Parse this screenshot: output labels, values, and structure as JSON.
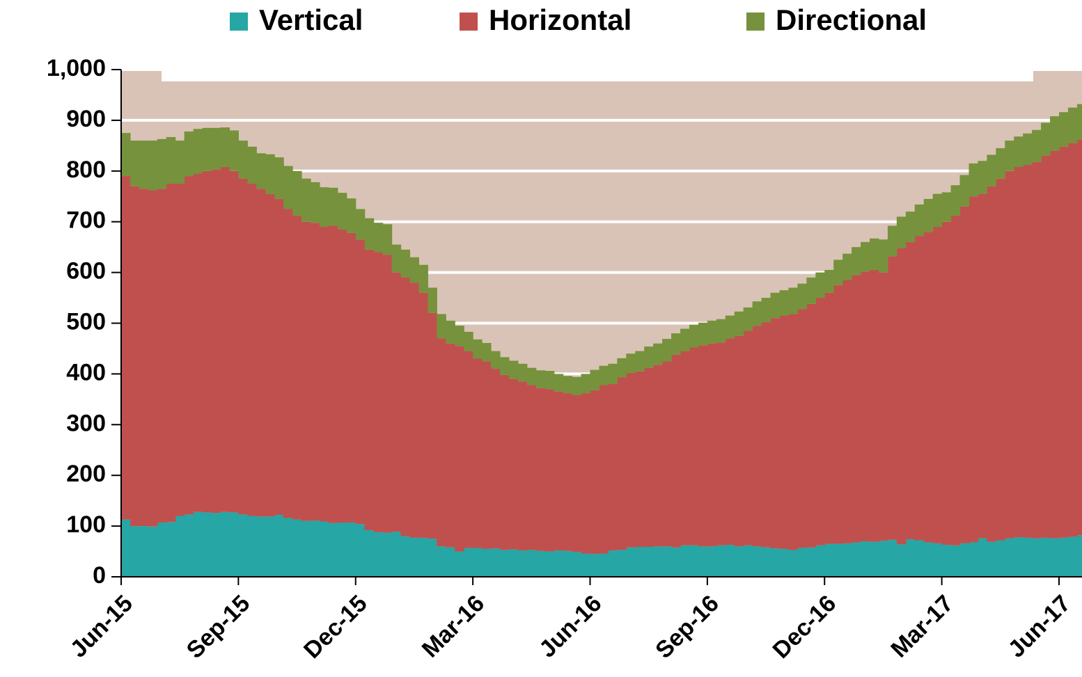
{
  "chart_data": {
    "type": "stacked-area",
    "categories": [
      "Jun-15",
      null,
      null,
      null,
      null,
      null,
      null,
      null,
      null,
      null,
      null,
      null,
      null,
      "Sep-15",
      null,
      null,
      null,
      null,
      null,
      null,
      null,
      null,
      null,
      null,
      null,
      null,
      "Dec-15",
      null,
      null,
      null,
      null,
      null,
      null,
      null,
      null,
      null,
      null,
      null,
      null,
      "Mar-16",
      null,
      null,
      null,
      null,
      null,
      null,
      null,
      null,
      null,
      null,
      null,
      null,
      "Jun-16",
      null,
      null,
      null,
      null,
      null,
      null,
      null,
      null,
      null,
      null,
      null,
      null,
      "Sep-16",
      null,
      null,
      null,
      null,
      null,
      null,
      null,
      null,
      null,
      null,
      null,
      null,
      "Dec-16",
      null,
      null,
      null,
      null,
      null,
      null,
      null,
      null,
      null,
      null,
      null,
      null,
      "Mar-17",
      null,
      null,
      null,
      null,
      null,
      null,
      null,
      null,
      null,
      null,
      null,
      null,
      "Jun-17",
      null,
      null
    ],
    "series": [
      {
        "name": "Vertical",
        "color": "#26a6a4",
        "values": [
          113,
          100,
          100,
          99,
          107,
          108,
          120,
          123,
          128,
          127,
          126,
          128,
          127,
          123,
          120,
          119,
          119,
          122,
          116,
          113,
          110,
          111,
          109,
          106,
          107,
          107,
          104,
          92,
          88,
          87,
          89,
          80,
          77,
          77,
          75,
          60,
          58,
          50,
          57,
          57,
          55,
          56,
          53,
          54,
          52,
          53,
          51,
          50,
          52,
          51,
          49,
          46,
          45,
          46,
          52,
          53,
          58,
          59,
          59,
          60,
          60,
          58,
          62,
          62,
          60,
          60,
          62,
          63,
          60,
          62,
          60,
          58,
          56,
          55,
          53,
          57,
          58,
          62,
          65,
          65,
          66,
          68,
          70,
          69,
          71,
          73,
          64,
          74,
          72,
          68,
          66,
          63,
          62,
          66,
          68,
          76,
          69,
          72,
          76,
          78,
          77,
          76,
          77,
          76,
          77,
          79,
          82
        ]
      },
      {
        "name": "Horizontal",
        "color": "#c0504d",
        "values": [
          677,
          670,
          665,
          663,
          658,
          667,
          655,
          667,
          667,
          673,
          677,
          680,
          673,
          662,
          655,
          646,
          636,
          623,
          609,
          599,
          590,
          587,
          581,
          586,
          578,
          571,
          561,
          553,
          552,
          548,
          511,
          510,
          503,
          483,
          445,
          410,
          402,
          405,
          388,
          373,
          370,
          354,
          345,
          336,
          333,
          325,
          321,
          320,
          313,
          311,
          309,
          316,
          323,
          332,
          328,
          340,
          344,
          346,
          353,
          358,
          365,
          380,
          383,
          390,
          396,
          400,
          400,
          407,
          415,
          423,
          435,
          444,
          454,
          460,
          465,
          471,
          480,
          488,
          495,
          510,
          519,
          527,
          532,
          536,
          529,
          559,
          584,
          586,
          600,
          612,
          624,
          637,
          650,
          664,
          682,
          679,
          701,
          713,
          724,
          730,
          735,
          742,
          753,
          764,
          771,
          776,
          780
        ]
      },
      {
        "name": "Directional",
        "color": "#76923c",
        "values": [
          85,
          90,
          95,
          98,
          98,
          92,
          85,
          88,
          88,
          85,
          82,
          78,
          80,
          75,
          73,
          70,
          78,
          82,
          85,
          88,
          85,
          80,
          78,
          75,
          72,
          68,
          60,
          62,
          58,
          60,
          55,
          55,
          50,
          55,
          50,
          48,
          45,
          40,
          38,
          38,
          36,
          35,
          35,
          36,
          35,
          34,
          35,
          36,
          35,
          34,
          36,
          38,
          40,
          38,
          40,
          38,
          38,
          40,
          42,
          42,
          44,
          42,
          44,
          45,
          45,
          45,
          46,
          45,
          48,
          46,
          48,
          48,
          50,
          50,
          52,
          50,
          52,
          50,
          45,
          50,
          52,
          55,
          58,
          62,
          65,
          60,
          62,
          60,
          62,
          65,
          65,
          58,
          60,
          62,
          65,
          65,
          62,
          60,
          60,
          60,
          62,
          63,
          65,
          68,
          68,
          70,
          70
        ]
      }
    ],
    "ylim": [
      0,
      1000
    ],
    "yticks": [
      0,
      100,
      200,
      300,
      400,
      500,
      600,
      700,
      800,
      900,
      {
        "value": 1000,
        "label": "1,000"
      }
    ],
    "grid": true,
    "legend": "top"
  }
}
